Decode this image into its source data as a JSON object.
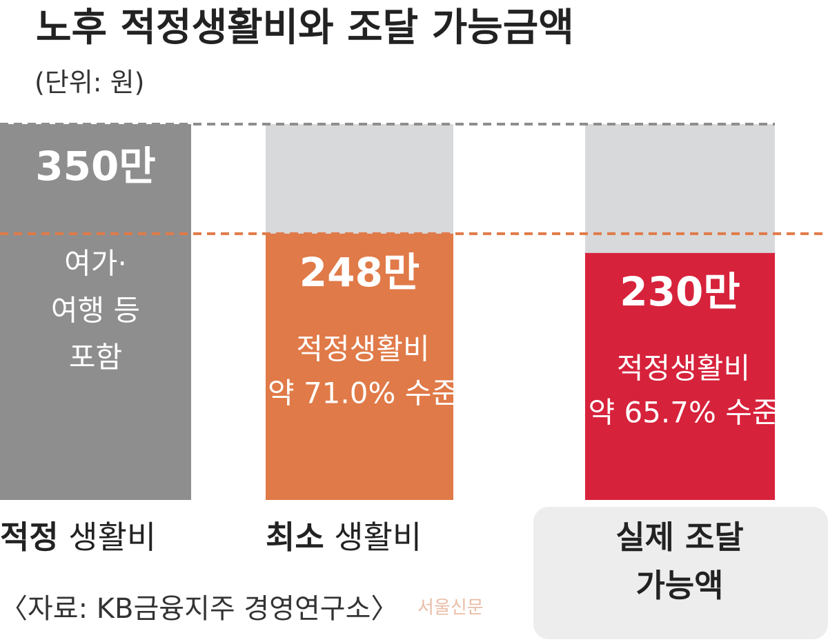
{
  "chart_data": {
    "type": "bar",
    "title": "노후 적정생활비와 조달 가능금액",
    "subtitle": "(단위: 원)",
    "categories": [
      "적정 생활비",
      "최소 생활비",
      "실제 조달\n가능액"
    ],
    "values": [
      350,
      248,
      230
    ],
    "value_labels": [
      "350만",
      "248만",
      "230만"
    ],
    "colors": [
      "#8e8e8e",
      "#e07a48",
      "#d7223b"
    ],
    "annotations": [
      [
        "여가·",
        "여행 등",
        "포함"
      ],
      [
        "적정생활비",
        "약 71.0% 수준"
      ],
      [
        "적정생활비",
        "약 65.7% 수준"
      ]
    ],
    "ylim": [
      0,
      350
    ],
    "source": "〈자료: KB금융지주 경영연구소〉",
    "watermark": "서울신문"
  }
}
